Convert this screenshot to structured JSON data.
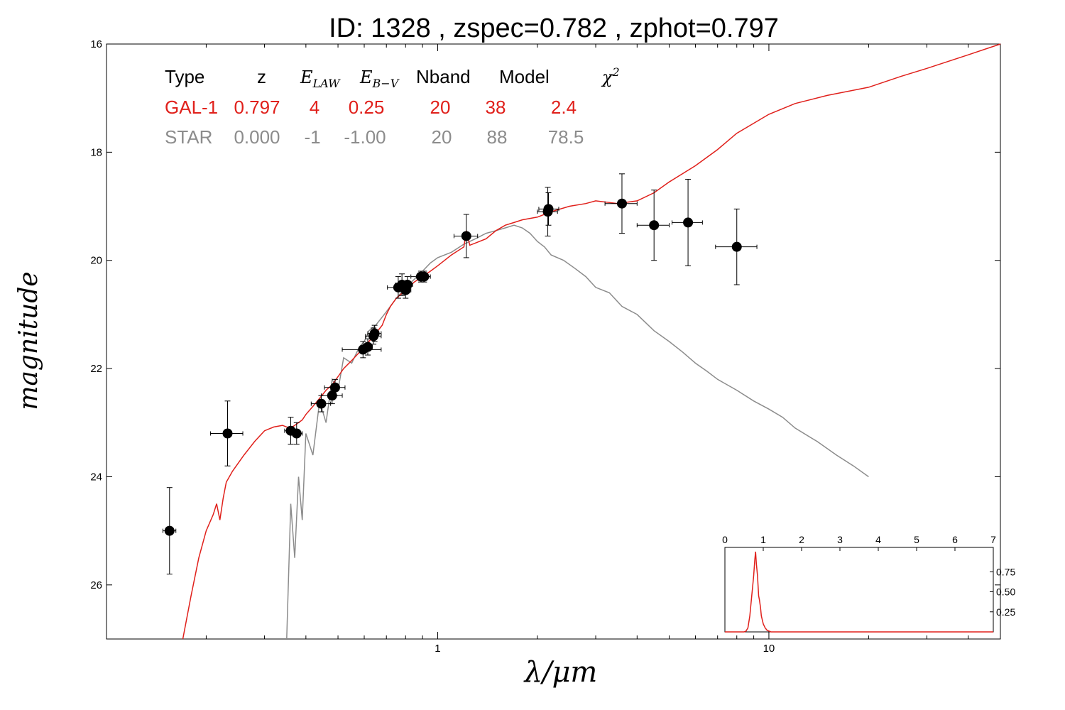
{
  "chart_data": {
    "type": "scatter",
    "title": "ID:  1328  , zspec=0.782 , zphot=0.797",
    "xlabel": "λ/μm",
    "ylabel": "magnitude",
    "xscale": "log",
    "xlim": [
      0.1,
      50
    ],
    "ylim": [
      27,
      16
    ],
    "y_inverted": true,
    "yticks": [
      "16",
      "18",
      "20",
      "22",
      "24",
      "26"
    ],
    "xticks": [
      "1",
      "10"
    ],
    "grid": false,
    "colors": {
      "galaxy": "#e0201b",
      "star": "#8c8c8c",
      "points": "#000000"
    },
    "fit_table": {
      "headers": [
        "Type",
        "z",
        "E_LAW",
        "E_B−V",
        "Nband",
        "Model",
        "χ²"
      ],
      "rows": [
        {
          "type": "GAL-1",
          "z": "0.797",
          "elaw": "4",
          "ebv": "0.25",
          "nband": "20",
          "model": "38",
          "chi2": "2.4",
          "color": "#e0201b"
        },
        {
          "type": "STAR",
          "z": "0.000",
          "elaw": "-1",
          "ebv": "-1.00",
          "nband": "20",
          "model": "88",
          "chi2": "78.5",
          "color": "#8c8c8c"
        }
      ]
    },
    "series": [
      {
        "type": "scatter",
        "points": [
          {
            "x": 0.155,
            "y": 25.0,
            "xerr": [
              0.148,
              0.162
            ],
            "yerr": 0.8
          },
          {
            "x": 0.232,
            "y": 23.2,
            "xerr": [
              0.206,
              0.258
            ],
            "yerr": 0.6
          },
          {
            "x": 0.36,
            "y": 23.15,
            "xerr": [
              0.345,
              0.375
            ],
            "yerr": 0.25
          },
          {
            "x": 0.375,
            "y": 23.2,
            "xerr": [
              0.36,
              0.39
            ],
            "yerr": 0.2
          },
          {
            "x": 0.445,
            "y": 22.65,
            "xerr": [
              0.415,
              0.475
            ],
            "yerr": 0.15
          },
          {
            "x": 0.48,
            "y": 22.5,
            "xerr": [
              0.445,
              0.515
            ],
            "yerr": 0.15
          },
          {
            "x": 0.49,
            "y": 22.35,
            "xerr": [
              0.455,
              0.525
            ],
            "yerr": 0.15
          },
          {
            "x": 0.595,
            "y": 21.65,
            "xerr": [
              0.515,
              0.675
            ],
            "yerr": 0.15
          },
          {
            "x": 0.615,
            "y": 21.6,
            "xerr": [
              0.595,
              0.635
            ],
            "yerr": 0.15
          },
          {
            "x": 0.64,
            "y": 21.4,
            "xerr": [
              0.605,
              0.675
            ],
            "yerr": 0.15
          },
          {
            "x": 0.645,
            "y": 21.35,
            "xerr": [
              0.615,
              0.675
            ],
            "yerr": 0.15
          },
          {
            "x": 0.76,
            "y": 20.5,
            "xerr": [
              0.705,
              0.815
            ],
            "yerr": 0.2
          },
          {
            "x": 0.78,
            "y": 20.45,
            "xerr": [
              0.745,
              0.815
            ],
            "yerr": 0.2
          },
          {
            "x": 0.8,
            "y": 20.55,
            "xerr": [
              0.77,
              0.83
            ],
            "yerr": 0.15
          },
          {
            "x": 0.81,
            "y": 20.45,
            "xerr": [
              0.78,
              0.84
            ],
            "yerr": 0.15
          },
          {
            "x": 0.89,
            "y": 20.3,
            "xerr": [
              0.83,
              0.95
            ],
            "yerr": 0.1
          },
          {
            "x": 0.91,
            "y": 20.3,
            "xerr": [
              0.87,
              0.95
            ],
            "yerr": 0.1
          },
          {
            "x": 1.22,
            "y": 19.55,
            "xerr": [
              1.12,
              1.32
            ],
            "yerr": 0.4
          },
          {
            "x": 2.15,
            "y": 19.1,
            "xerr": [
              2.0,
              2.3
            ],
            "yerr": 0.45
          },
          {
            "x": 2.16,
            "y": 19.05,
            "xerr": [
              2.02,
              2.32
            ],
            "yerr": 0.3
          },
          {
            "x": 3.6,
            "y": 18.95,
            "xerr": [
              3.2,
              4.0
            ],
            "yerr": 0.55
          },
          {
            "x": 4.5,
            "y": 19.35,
            "xerr": [
              4.0,
              5.0
            ],
            "yerr": 0.65
          },
          {
            "x": 5.7,
            "y": 19.3,
            "xerr": [
              5.1,
              6.3
            ],
            "yerr": 0.8
          },
          {
            "x": 8.0,
            "y": 19.75,
            "xerr": [
              6.9,
              9.2
            ],
            "yerr": 0.7
          }
        ]
      },
      {
        "type": "line",
        "name": "GAL-1",
        "color": "#e0201b",
        "x": [
          0.17,
          0.18,
          0.19,
          0.2,
          0.21,
          0.215,
          0.22,
          0.225,
          0.23,
          0.24,
          0.26,
          0.28,
          0.3,
          0.32,
          0.34,
          0.35,
          0.36,
          0.37,
          0.38,
          0.39,
          0.4,
          0.42,
          0.44,
          0.46,
          0.48,
          0.5,
          0.52,
          0.55,
          0.58,
          0.6,
          0.62,
          0.65,
          0.68,
          0.7,
          0.72,
          0.75,
          0.8,
          0.85,
          0.9,
          0.95,
          1.0,
          1.1,
          1.2,
          1.22,
          1.25,
          1.3,
          1.4,
          1.5,
          1.6,
          1.7,
          1.8,
          2.0,
          2.2,
          2.5,
          2.8,
          3.0,
          3.5,
          4.0,
          4.5,
          5.0,
          6.0,
          7.0,
          8.0,
          10.0,
          12.0,
          15.0,
          20.0,
          25.0,
          30.0,
          40.0,
          50.0
        ],
        "y": [
          27.0,
          26.2,
          25.5,
          25.0,
          24.7,
          24.5,
          24.8,
          24.4,
          24.1,
          23.9,
          23.6,
          23.35,
          23.15,
          23.08,
          23.05,
          23.08,
          23.1,
          23.05,
          23.0,
          22.95,
          22.85,
          22.7,
          22.55,
          22.4,
          22.3,
          22.15,
          22.0,
          21.85,
          21.7,
          21.6,
          21.5,
          21.35,
          21.2,
          21.0,
          20.85,
          20.7,
          20.55,
          20.4,
          20.3,
          20.2,
          20.1,
          19.9,
          19.75,
          19.45,
          19.72,
          19.68,
          19.6,
          19.45,
          19.35,
          19.3,
          19.25,
          19.2,
          19.1,
          19.0,
          18.95,
          18.9,
          18.95,
          18.9,
          18.75,
          18.55,
          18.25,
          17.95,
          17.65,
          17.3,
          17.1,
          16.95,
          16.8,
          16.6,
          16.45,
          16.2,
          16.0
        ]
      },
      {
        "type": "line",
        "name": "STAR",
        "color": "#8c8c8c",
        "x": [
          0.35,
          0.36,
          0.37,
          0.38,
          0.39,
          0.4,
          0.42,
          0.44,
          0.46,
          0.48,
          0.5,
          0.52,
          0.55,
          0.58,
          0.6,
          0.62,
          0.65,
          0.7,
          0.75,
          0.8,
          0.85,
          0.9,
          0.95,
          1.0,
          1.1,
          1.2,
          1.3,
          1.4,
          1.5,
          1.6,
          1.7,
          1.8,
          1.9,
          2.0,
          2.1,
          2.2,
          2.4,
          2.6,
          2.8,
          3.0,
          3.3,
          3.6,
          4.0,
          4.5,
          5.0,
          5.5,
          6.0,
          6.5,
          7.0,
          8.0,
          9.0,
          10.0,
          11.0,
          12.0,
          14.0,
          16.0,
          18.0,
          20.0
        ],
        "y": [
          27.0,
          24.5,
          25.5,
          24.0,
          24.8,
          23.2,
          23.6,
          22.6,
          23.0,
          22.2,
          22.4,
          21.8,
          21.9,
          21.6,
          21.5,
          21.3,
          21.2,
          20.95,
          20.7,
          20.5,
          20.35,
          20.2,
          20.05,
          19.95,
          19.85,
          19.7,
          19.6,
          19.5,
          19.45,
          19.4,
          19.35,
          19.4,
          19.5,
          19.65,
          19.75,
          19.9,
          20.0,
          20.15,
          20.3,
          20.5,
          20.6,
          20.85,
          21.0,
          21.3,
          21.5,
          21.7,
          21.9,
          22.05,
          22.2,
          22.4,
          22.6,
          22.75,
          22.9,
          23.1,
          23.35,
          23.6,
          23.8,
          24.0
        ]
      }
    ],
    "inset": {
      "type": "line",
      "xlim": [
        0,
        7
      ],
      "ylim": [
        0,
        1
      ],
      "xticks": [
        "0",
        "1",
        "2",
        "3",
        "4",
        "5",
        "6",
        "7"
      ],
      "yticks": [
        "0.25",
        "0.50",
        "0.75"
      ],
      "color": "#e0201b",
      "x": [
        0,
        0.5,
        0.55,
        0.6,
        0.65,
        0.7,
        0.72,
        0.75,
        0.78,
        0.8,
        0.82,
        0.85,
        0.88,
        0.9,
        0.93,
        0.95,
        1.0,
        1.05,
        1.1,
        1.2,
        7.0
      ],
      "y": [
        0,
        0,
        0.01,
        0.05,
        0.2,
        0.45,
        0.55,
        0.7,
        0.9,
        1.0,
        0.85,
        0.7,
        0.45,
        0.4,
        0.3,
        0.2,
        0.1,
        0.05,
        0.02,
        0,
        0
      ]
    }
  }
}
